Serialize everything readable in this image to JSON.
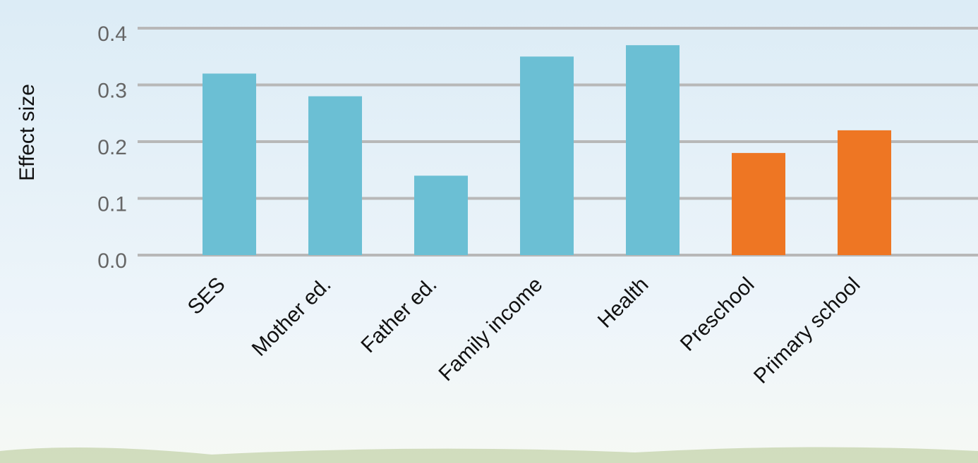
{
  "chart_data": {
    "type": "bar",
    "y_label": "Effect size",
    "categories": [
      "SES",
      "Mother ed.",
      "Father ed.",
      "Family income",
      "Health",
      "Preschool",
      "Primary school"
    ],
    "values": [
      0.32,
      0.28,
      0.14,
      0.35,
      0.37,
      0.18,
      0.22
    ],
    "colors": [
      "#6bbfd4",
      "#6bbfd4",
      "#6bbfd4",
      "#6bbfd4",
      "#6bbfd4",
      "#ee7623",
      "#ee7623"
    ],
    "ylim": [
      0,
      0.4
    ],
    "yticks": [
      {
        "value": 0,
        "label": "0.0"
      },
      0.1,
      0.2,
      0.3,
      0.4
    ],
    "grid": true
  }
}
